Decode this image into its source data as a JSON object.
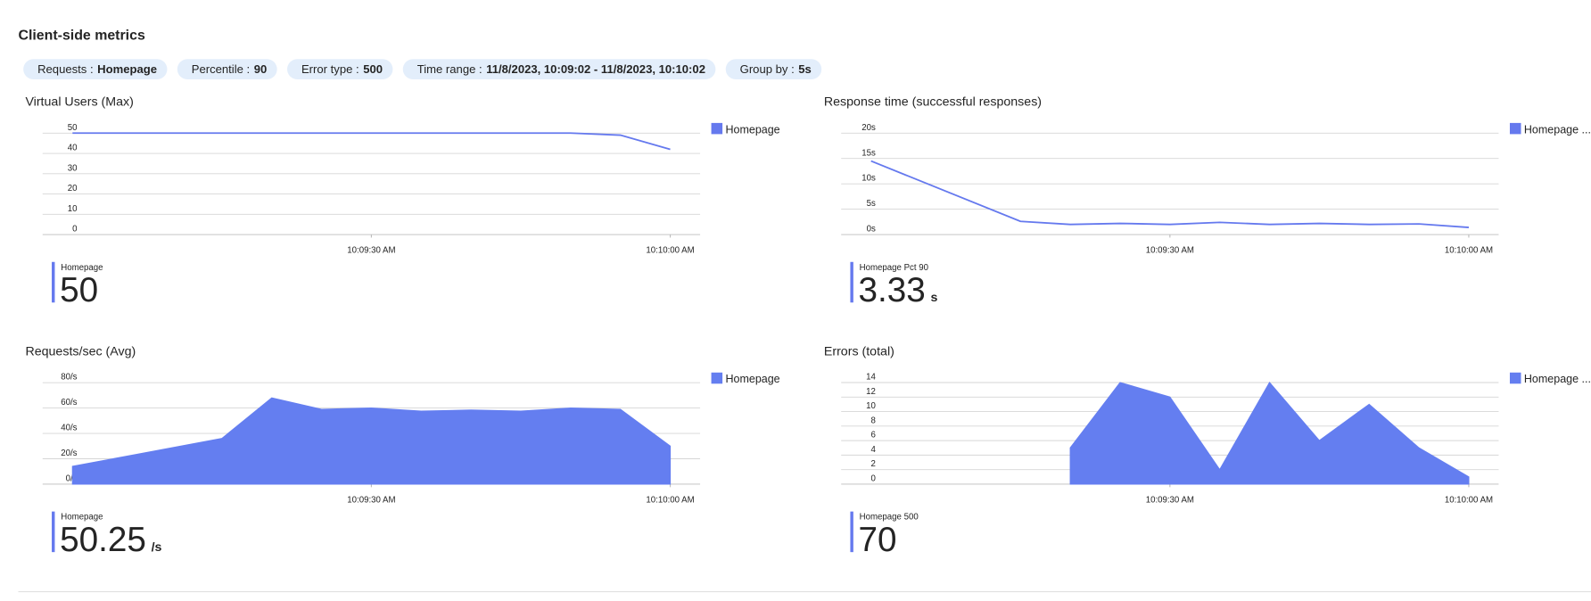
{
  "header": {
    "title": "Client-side metrics"
  },
  "filters": [
    {
      "label": "Requests :",
      "value": "Homepage"
    },
    {
      "label": "Percentile :",
      "value": "90"
    },
    {
      "label": "Error type :",
      "value": "500"
    },
    {
      "label": "Time range :",
      "value": "11/8/2023, 10:09:02 - 11/8/2023, 10:10:02"
    },
    {
      "label": "Group by :",
      "value": "5s"
    }
  ],
  "chart_data": [
    {
      "type": "line",
      "title": "Virtual Users (Max)",
      "x": [
        0,
        5,
        10,
        15,
        20,
        25,
        30,
        35,
        40,
        45,
        50,
        55,
        60
      ],
      "series": [
        {
          "name": "Homepage",
          "color": "#6579ee",
          "values": [
            50,
            50,
            50,
            50,
            50,
            50,
            50,
            50,
            50,
            50,
            50,
            49,
            42
          ]
        }
      ],
      "xlim": [
        -3,
        63
      ],
      "xticks": [
        {
          "value": 30,
          "label": "10:09:30 AM"
        },
        {
          "value": 60,
          "label": "10:10:00 AM"
        }
      ],
      "ylim": [
        0,
        56.5
      ],
      "yticks": [
        0,
        10,
        20,
        30,
        40,
        50
      ],
      "grid": true,
      "legend": "right",
      "summary": {
        "label": "Homepage",
        "value": "50"
      }
    },
    {
      "type": "line",
      "title": "Response time (successful responses)",
      "x": [
        0,
        15,
        20,
        25,
        30,
        35,
        40,
        45,
        50,
        55,
        60
      ],
      "series": [
        {
          "name": "Homepage ...",
          "color": "#6579ee",
          "values": [
            14.5,
            2.6,
            2.0,
            2.2,
            2.0,
            2.4,
            2.0,
            2.2,
            2.0,
            2.1,
            1.4
          ]
        }
      ],
      "xlim": [
        -3,
        63
      ],
      "xticks": [
        {
          "value": 30,
          "label": "10:09:30 AM"
        },
        {
          "value": 60,
          "label": "10:10:00 AM"
        }
      ],
      "ylim": [
        0,
        22.6
      ],
      "yticks": [
        {
          "value": 0,
          "label": "0s"
        },
        {
          "value": 5,
          "label": "5s"
        },
        {
          "value": 10,
          "label": "10s"
        },
        {
          "value": 15,
          "label": "15s"
        },
        {
          "value": 20,
          "label": "20s"
        }
      ],
      "grid": true,
      "legend": "right",
      "summary": {
        "label": "Homepage Pct 90",
        "value": "3.33",
        "unit": "s"
      }
    },
    {
      "type": "area",
      "title": "Requests/sec (Avg)",
      "x": [
        0,
        15,
        20,
        25,
        30,
        35,
        40,
        45,
        50,
        55,
        60
      ],
      "series": [
        {
          "name": "Homepage",
          "color": "#647ef0",
          "values": [
            14,
            36,
            68,
            59,
            60,
            57.6,
            58.4,
            57.6,
            60,
            59,
            30
          ]
        }
      ],
      "xlim": [
        -3,
        63
      ],
      "xticks": [
        {
          "value": 30,
          "label": "10:09:30 AM"
        },
        {
          "value": 60,
          "label": "10:10:00 AM"
        }
      ],
      "ylim": [
        0,
        90.4
      ],
      "yticks": [
        {
          "value": 0,
          "label": "0/s"
        },
        {
          "value": 20,
          "label": "20/s"
        },
        {
          "value": 40,
          "label": "40/s"
        },
        {
          "value": 60,
          "label": "60/s"
        },
        {
          "value": 80,
          "label": "80/s"
        }
      ],
      "grid": true,
      "legend": "right",
      "summary": {
        "label": "Homepage",
        "value": "50.25",
        "unit": "/s"
      }
    },
    {
      "type": "area",
      "title": "Errors (total)",
      "x": [
        20,
        25,
        30,
        35,
        40,
        45,
        50,
        55,
        60
      ],
      "series": [
        {
          "name": "Homepage ...",
          "color": "#647ef0",
          "values": [
            5,
            14,
            12,
            2,
            14,
            6,
            11,
            5,
            1
          ]
        }
      ],
      "xlim": [
        -3,
        63
      ],
      "xticks": [
        {
          "value": 30,
          "label": "10:09:30 AM"
        },
        {
          "value": 60,
          "label": "10:10:00 AM"
        }
      ],
      "ylim": [
        0,
        15.8
      ],
      "yticks": [
        0,
        2,
        4,
        6,
        8,
        10,
        12,
        14
      ],
      "grid": true,
      "legend": "right",
      "summary": {
        "label": "Homepage 500",
        "value": "70"
      }
    }
  ]
}
